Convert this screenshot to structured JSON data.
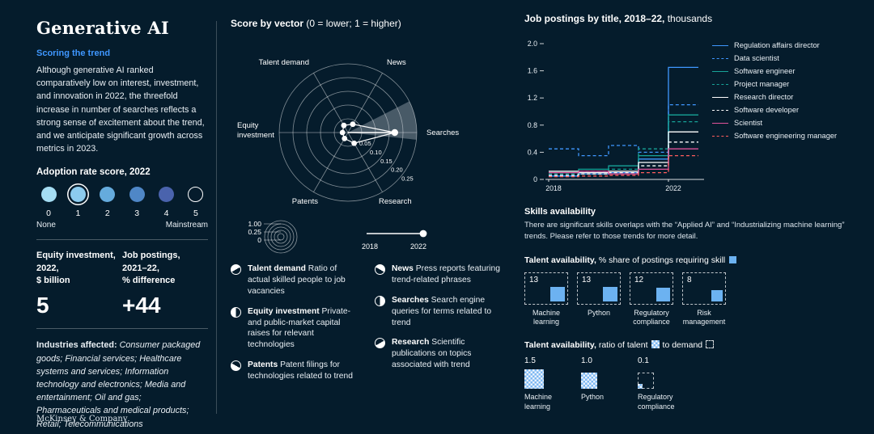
{
  "footer": {
    "logo": "McKinsey & Company"
  },
  "colors": {
    "background": "#051c2c",
    "accent": "#3f97ff",
    "skill_square": "#6cb2f1",
    "pattern_blue": "#7db8f2",
    "adoption_scale": [
      "#a5ddf3",
      "#8ccbee",
      "#65abdd",
      "#4f87c7",
      "#4a63ad",
      "none"
    ]
  },
  "left": {
    "title": "Generative AI",
    "section_label": "Scoring the trend",
    "intro": "Although generative AI ranked comparatively low on interest, investment, and innovation in 2022, the threefold increase in number of searches reflects a strong sense of excitement about the trend, and we anticipate significant growth across metrics in 2023.",
    "adoption": {
      "title": "Adoption rate score, 2022",
      "scores": [
        "0",
        "1",
        "2",
        "3",
        "4",
        "5"
      ],
      "selected_index": 1,
      "min_label": "None",
      "max_label": "Mainstream"
    },
    "stats": [
      {
        "label": "Equity investment,\n2022,\n$ billion",
        "value": "5"
      },
      {
        "label": "Job postings,\n2021–22,\n% difference",
        "value": "+44"
      }
    ],
    "industries_label": "Industries affected:",
    "industries": "Consumer packaged goods; Financial services; Healthcare systems and services; Information technology and electronics; Media and entertainment; Oil and gas; Pharmaceuticals and medical products; Retail; Telecommunications"
  },
  "vector": {
    "title_bold": "Score by vector",
    "title_rest": " (0 = lower; 1 = higher)",
    "scale_labels": [
      "1.00",
      "0.25",
      "0"
    ],
    "timeline_start": "2018",
    "timeline_end": "2022",
    "legend": [
      {
        "term": "Talent demand",
        "desc": "Ratio of actual skilled people to job vacancies",
        "angle": 120
      },
      {
        "term": "Equity investment",
        "desc": "Private- and public-market capital raises for relevant technologies",
        "angle": 180
      },
      {
        "term": "Patents",
        "desc": "Patent filings for technologies related to trend",
        "angle": 240
      },
      {
        "term": "News",
        "desc": "Press reports featuring trend-related phrases",
        "angle": 60
      },
      {
        "term": "Searches",
        "desc": "Search engine queries for terms related to trend",
        "angle": 0
      },
      {
        "term": "Research",
        "desc": "Scientific publications on topics associated with trend",
        "angle": 300
      }
    ]
  },
  "jobs": {
    "title_bold": "Job postings by title, 2018–22,",
    "title_rest": " thousands"
  },
  "skills": {
    "title": "Skills availability",
    "body": "There are significant skills overlaps with the “Applied AI” and “Industrializing machine learning” trends. Please refer to those trends for more detail.",
    "share_label_bold": "Talent availability,",
    "share_label_rest": " % share of postings requiring skill",
    "ratio_label_bold": "Talent availability,",
    "ratio_label_mid": " ratio of talent",
    "ratio_label_end": "to demand"
  },
  "chart_data": [
    {
      "type": "radar",
      "title": "Score by vector (0 = lower; 1 = higher)",
      "axes": [
        "Searches",
        "News",
        "Talent demand",
        "Equity investment",
        "Patents",
        "Research"
      ],
      "angles": [
        0,
        60,
        120,
        180,
        240,
        300
      ],
      "values": [
        0.17,
        0.035,
        0.03,
        0.02,
        0.025,
        0.045
      ],
      "ring_ticks": [
        "0.05",
        "0.10",
        "0.15",
        "0.20",
        "0.25"
      ],
      "ring_max": 0.25,
      "axis_range_note": "0 = lower; 1 = higher",
      "period": "2018–2022"
    },
    {
      "type": "line",
      "line_style": "step-after",
      "title": "Job postings by title, 2018–22, thousands",
      "x": [
        2018,
        2019,
        2020,
        2021,
        2022
      ],
      "x_ticks": [
        "2018",
        "2022"
      ],
      "y_ticks": [
        "2.0",
        "1.6",
        "1.2",
        "0.8",
        "0.4",
        "0"
      ],
      "ylim": [
        0,
        2.0
      ],
      "legend_position": "right",
      "series": [
        {
          "name": "Regulation affairs director",
          "color": "#3f97ff",
          "dashed": false,
          "values": [
            0.05,
            0.08,
            0.1,
            0.3,
            1.65
          ]
        },
        {
          "name": "Data scientist",
          "color": "#3f97ff",
          "dashed": true,
          "values": [
            0.45,
            0.35,
            0.5,
            0.4,
            1.1
          ]
        },
        {
          "name": "Software engineer",
          "color": "#17a398",
          "dashed": false,
          "values": [
            0.1,
            0.15,
            0.2,
            0.35,
            0.95
          ]
        },
        {
          "name": "Project manager",
          "color": "#17a398",
          "dashed": true,
          "values": [
            0.08,
            0.12,
            0.15,
            0.45,
            0.85
          ]
        },
        {
          "name": "Research director",
          "color": "#ffffff",
          "dashed": false,
          "values": [
            0.12,
            0.1,
            0.12,
            0.25,
            0.7
          ]
        },
        {
          "name": "Software developer",
          "color": "#ffffff",
          "dashed": true,
          "values": [
            0.06,
            0.08,
            0.1,
            0.2,
            0.55
          ]
        },
        {
          "name": "Scientist",
          "color": "#e0529b",
          "dashed": false,
          "values": [
            0.1,
            0.12,
            0.08,
            0.15,
            0.45
          ]
        },
        {
          "name": "Software engineering manager",
          "color": "#ff5d5d",
          "dashed": true,
          "values": [
            0.04,
            0.05,
            0.06,
            0.1,
            0.35
          ]
        }
      ]
    },
    {
      "type": "bar",
      "title": "Talent availability, % share of postings requiring skill",
      "categories": [
        "Machine learning",
        "Python",
        "Regulatory compliance",
        "Risk management"
      ],
      "values": [
        13,
        13,
        12,
        8
      ]
    },
    {
      "type": "bar",
      "title": "Talent availability, ratio of talent to demand",
      "categories": [
        "Machine learning",
        "Python",
        "Regulatory compliance"
      ],
      "values": [
        1.5,
        1.0,
        0.1
      ]
    }
  ]
}
